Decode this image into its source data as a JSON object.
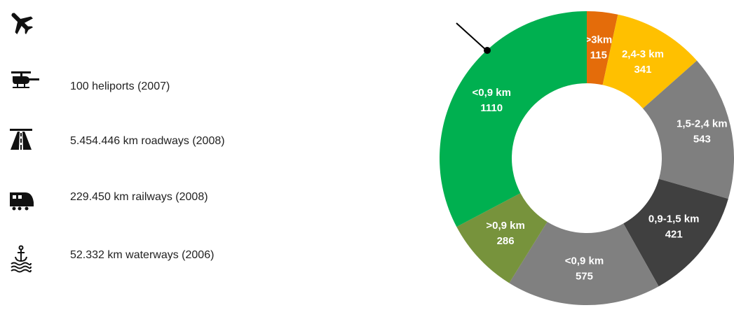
{
  "list": [
    {
      "text": "100 heliports (2007)"
    },
    {
      "text": "5.454.446 km roadways (2008)"
    },
    {
      "text": "229.450 km railways (2008)"
    },
    {
      "text": "52.332 km waterways (2006)"
    }
  ],
  "chart_data": {
    "type": "pie",
    "donut": true,
    "categories": [
      ">3km",
      "2,4-3 km",
      "1,5-2,4 km",
      "0,9-1,5 km",
      "<0,9 km",
      ">0,9 km",
      "<0,9 km"
    ],
    "values": [
      115,
      341,
      543,
      421,
      575,
      286,
      1110
    ],
    "colors": [
      "#e46c0a",
      "#ffc000",
      "#7f7f7f",
      "#404040",
      "#808080",
      "#77933c",
      "#00b050"
    ]
  }
}
